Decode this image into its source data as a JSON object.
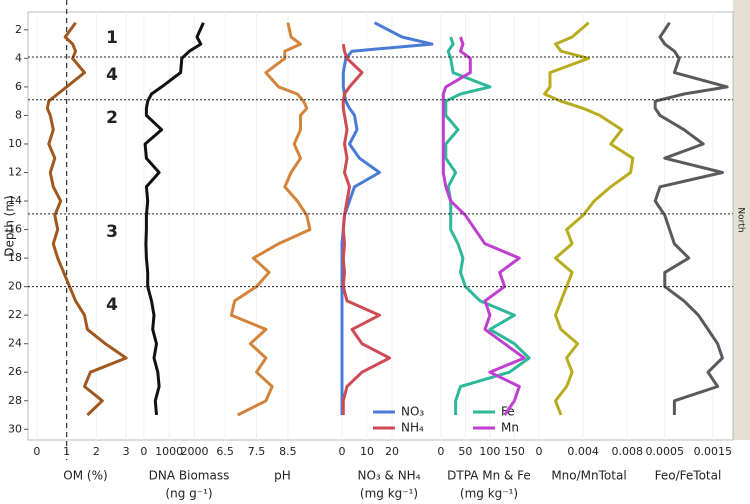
{
  "shared": {
    "ylabel": "Depth (m)",
    "ylim": [
      0.75,
      30.75
    ],
    "yticks": [
      2,
      4,
      6,
      8,
      10,
      12,
      14,
      16,
      18,
      20,
      22,
      24,
      26,
      28,
      30
    ],
    "depth": [
      1.5,
      2.5,
      3,
      3.5,
      4,
      5,
      6,
      6.5,
      7,
      7.5,
      8,
      9,
      10,
      11,
      12,
      13,
      14,
      15,
      16,
      17,
      18,
      19,
      20,
      21,
      22,
      23,
      24,
      25,
      26,
      27,
      28,
      29
    ],
    "boundaries": [
      3.9,
      6.9,
      14.9,
      20
    ],
    "zones": [
      "1",
      "4",
      "2",
      "3",
      "4"
    ],
    "strip_label": "North"
  },
  "chart_data": [
    {
      "type": "line",
      "xlabel": [
        "OM (%)"
      ],
      "xlim": [
        -0.3,
        3.3
      ],
      "xticks": [
        0,
        1,
        2,
        3
      ],
      "reference_line": 1,
      "series": [
        {
          "name": null,
          "color": "#a0581f",
          "values": [
            1.3,
            0.95,
            1.2,
            1.3,
            1.2,
            1.6,
            1.0,
            0.7,
            0.4,
            0.35,
            0.45,
            0.55,
            0.4,
            0.6,
            0.45,
            0.55,
            0.8,
            0.6,
            0.7,
            0.55,
            0.7,
            0.9,
            1.1,
            1.3,
            1.6,
            1.7,
            2.3,
            3.0,
            1.8,
            1.6,
            2.2,
            1.7
          ]
        }
      ]
    },
    {
      "type": "line",
      "xlabel": [
        "DNA Biomass",
        "(ng g⁻¹)"
      ],
      "xlim": [
        -350,
        3600
      ],
      "xticks": [
        0,
        1000,
        2000
      ],
      "series": [
        {
          "name": null,
          "color": "#111111",
          "values": [
            2350,
            2100,
            2250,
            1800,
            1500,
            1450,
            700,
            300,
            150,
            100,
            100,
            700,
            50,
            100,
            600,
            100,
            150,
            100,
            100,
            80,
            100,
            150,
            150,
            300,
            400,
            350,
            500,
            400,
            550,
            600,
            450,
            500
          ]
        }
      ]
    },
    {
      "type": "line",
      "xlabel": [
        "pH"
      ],
      "xlim": [
        6.4,
        10.0
      ],
      "xticks": [
        6.5,
        7.5,
        8.5
      ],
      "series": [
        {
          "name": null,
          "color": "#d4843a",
          "values": [
            8.5,
            8.6,
            8.9,
            8.4,
            8.4,
            7.8,
            8.2,
            8.8,
            9.0,
            9.1,
            8.9,
            8.9,
            8.7,
            8.9,
            8.6,
            8.4,
            8.8,
            9.1,
            9.2,
            8.2,
            7.4,
            7.9,
            7.5,
            6.8,
            6.7,
            7.8,
            7.3,
            7.8,
            7.5,
            8.0,
            7.8,
            6.9
          ]
        }
      ]
    },
    {
      "type": "line",
      "xlabel": [
        "NO₃ & NH₄",
        "(mg kg⁻¹)"
      ],
      "xlim": [
        -2.8,
        37.2
      ],
      "xticks": [
        0,
        10,
        20
      ],
      "legend": true,
      "series": [
        {
          "name": "NO₃",
          "color": "#4a7bd4",
          "values": [
            13,
            24,
            36,
            4,
            1.5,
            0.5,
            0.5,
            1,
            1.5,
            3,
            5,
            6,
            3,
            7,
            15,
            5,
            3,
            1,
            0.5,
            0,
            0,
            0,
            0,
            0,
            0,
            0,
            0,
            0,
            0,
            0,
            0,
            0
          ]
        },
        {
          "name": "NH₄",
          "color": "#d04a54",
          "values": [
            null,
            null,
            0.5,
            1,
            2,
            8,
            3,
            1,
            0.5,
            0.5,
            1,
            2,
            1,
            2,
            1,
            3,
            2,
            1,
            0.5,
            1,
            0.5,
            1,
            0.5,
            2,
            15,
            4,
            8,
            19,
            8,
            2,
            0.5,
            0.5
          ]
        }
      ]
    },
    {
      "type": "line",
      "xlabel": [
        "DTPA Mn & Fe",
        "(mg kg⁻¹)"
      ],
      "xlim": [
        -12,
        192
      ],
      "xticks": [
        0,
        50,
        100,
        150
      ],
      "legend": true,
      "series": [
        {
          "name": "Fe",
          "color": "#2db89a",
          "values": [
            null,
            20,
            25,
            15,
            20,
            25,
            100,
            40,
            10,
            10,
            10,
            35,
            10,
            10,
            30,
            15,
            20,
            20,
            20,
            35,
            45,
            40,
            50,
            80,
            150,
            100,
            150,
            180,
            140,
            40,
            30,
            30
          ]
        },
        {
          "name": "Mn",
          "color": "#c03fd0",
          "values": [
            null,
            40,
            45,
            40,
            60,
            60,
            10,
            5,
            5,
            5,
            5,
            5,
            5,
            5,
            5,
            10,
            20,
            50,
            70,
            90,
            160,
            120,
            130,
            90,
            100,
            90,
            130,
            170,
            100,
            160,
            150,
            130
          ]
        }
      ]
    },
    {
      "type": "line",
      "xlabel": [
        "Mno/MnTotal"
      ],
      "xlim": [
        -0.00036,
        0.0087
      ],
      "xticks": [
        0,
        0.004,
        0.008
      ],
      "series": [
        {
          "name": null,
          "color": "#b8ac1e",
          "values": [
            0.0045,
            0.003,
            0.0015,
            0.002,
            0.0045,
            0.001,
            0.001,
            0.0005,
            0.002,
            0.004,
            0.0055,
            0.0075,
            0.0065,
            0.0085,
            0.0083,
            0.0065,
            0.005,
            0.004,
            0.0025,
            0.003,
            0.0015,
            0.003,
            0.0025,
            0.002,
            0.0015,
            0.002,
            0.0035,
            0.0025,
            0.003,
            0.0025,
            0.0015,
            0.002
          ]
        }
      ]
    },
    {
      "type": "line",
      "xlabel": [
        "Feo/FeTotal"
      ],
      "xlim": [
        -0.00012,
        0.00192
      ],
      "xticks": [
        0.0005,
        0.0015
      ],
      "series": [
        {
          "name": null,
          "color": "#5a5a5a",
          "values": [
            0.0006,
            0.0004,
            0.0005,
            0.0007,
            0.0008,
            0.0007,
            0.0018,
            0.0009,
            0.0003,
            0.0003,
            0.0004,
            0.0009,
            0.0013,
            0.0005,
            0.0017,
            0.0004,
            0.0003,
            0.0005,
            0.0006,
            0.0007,
            0.001,
            0.0005,
            0.0005,
            0.0009,
            0.0012,
            0.0014,
            0.0016,
            0.0017,
            0.0014,
            0.0016,
            0.0007,
            0.0007
          ]
        }
      ]
    }
  ]
}
